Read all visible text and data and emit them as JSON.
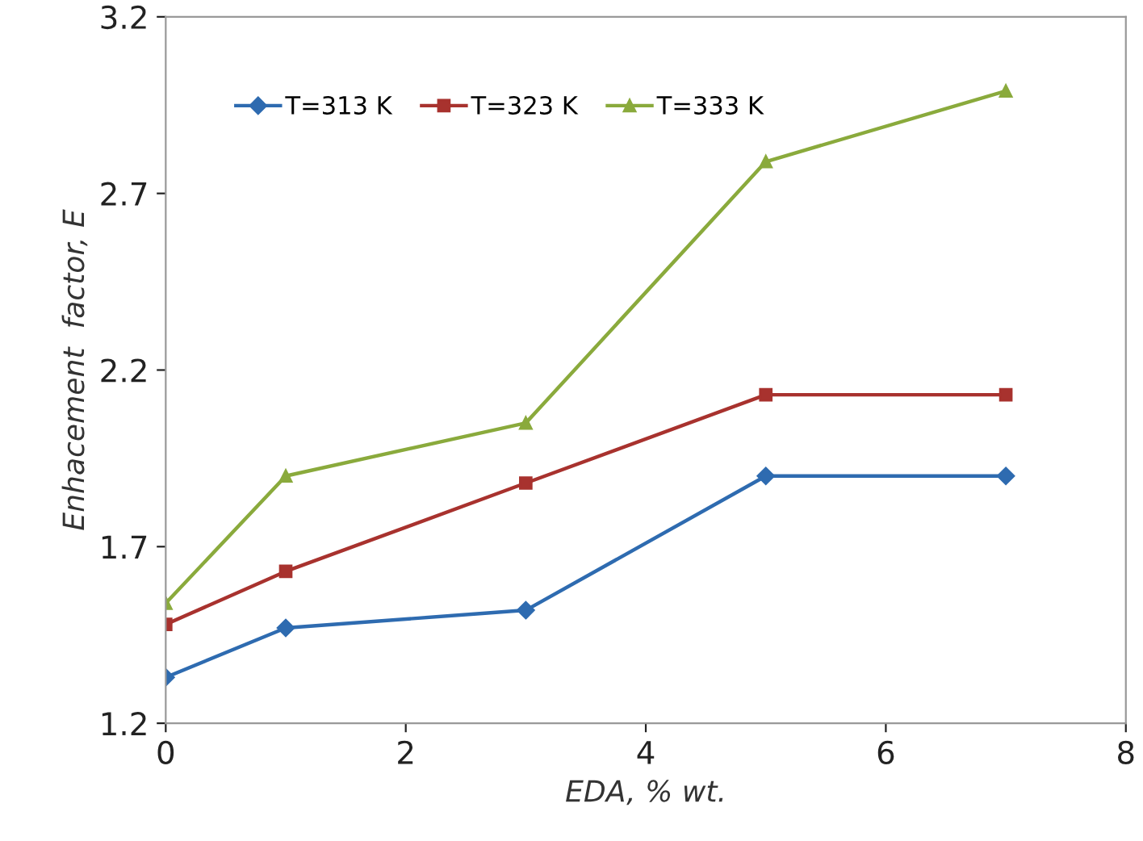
{
  "chart_data": {
    "type": "line",
    "xlabel": "EDA, % wt.",
    "ylabel": "Enhacement  factor, E",
    "x": [
      0,
      1,
      3,
      5,
      7
    ],
    "series": [
      {
        "name": "T=313 K",
        "color": "#2e6bb0",
        "marker": "diamond",
        "values": [
          1.33,
          1.47,
          1.52,
          1.9,
          1.9
        ]
      },
      {
        "name": "T=323 K",
        "color": "#a8322e",
        "marker": "square",
        "values": [
          1.48,
          1.63,
          1.88,
          2.13,
          2.13
        ]
      },
      {
        "name": "T=333 K",
        "color": "#8aaa3c",
        "marker": "triangle",
        "values": [
          1.54,
          1.9,
          2.05,
          2.79,
          2.99
        ]
      }
    ],
    "xlim": [
      0,
      8
    ],
    "xticks": [
      0,
      2,
      4,
      6,
      8
    ],
    "ylim": [
      1.2,
      3.2
    ],
    "yticks": [
      1.2,
      1.7,
      2.2,
      2.7,
      3.2
    ],
    "grid": false,
    "legend": "top left"
  }
}
